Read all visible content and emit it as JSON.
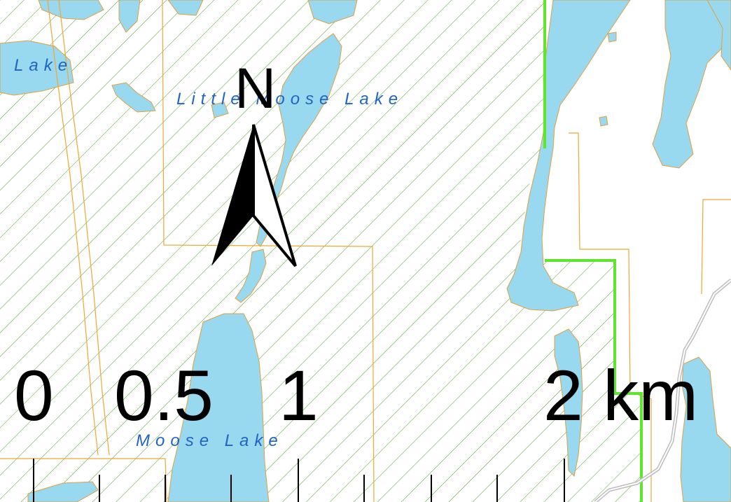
{
  "map": {
    "lake_labels": {
      "lake": "Lake",
      "little_moose_lake": "Little Moose Lake",
      "moose_lake": "Moose Lake"
    },
    "north_arrow": {
      "letter": "N"
    },
    "scale_bar": {
      "labels": [
        "0",
        "0.5",
        "1",
        "2 km"
      ],
      "unit": "km",
      "values": [
        0,
        0.5,
        1,
        2
      ]
    },
    "colors": {
      "water": "#99d9ef",
      "water_outline": "#e0a040",
      "parcel_line": "#f0a830",
      "hatch": "#4f9e2a",
      "boundary": "#5ee62a",
      "label_text": "#2064c8",
      "road": "#c8c8c8"
    }
  }
}
